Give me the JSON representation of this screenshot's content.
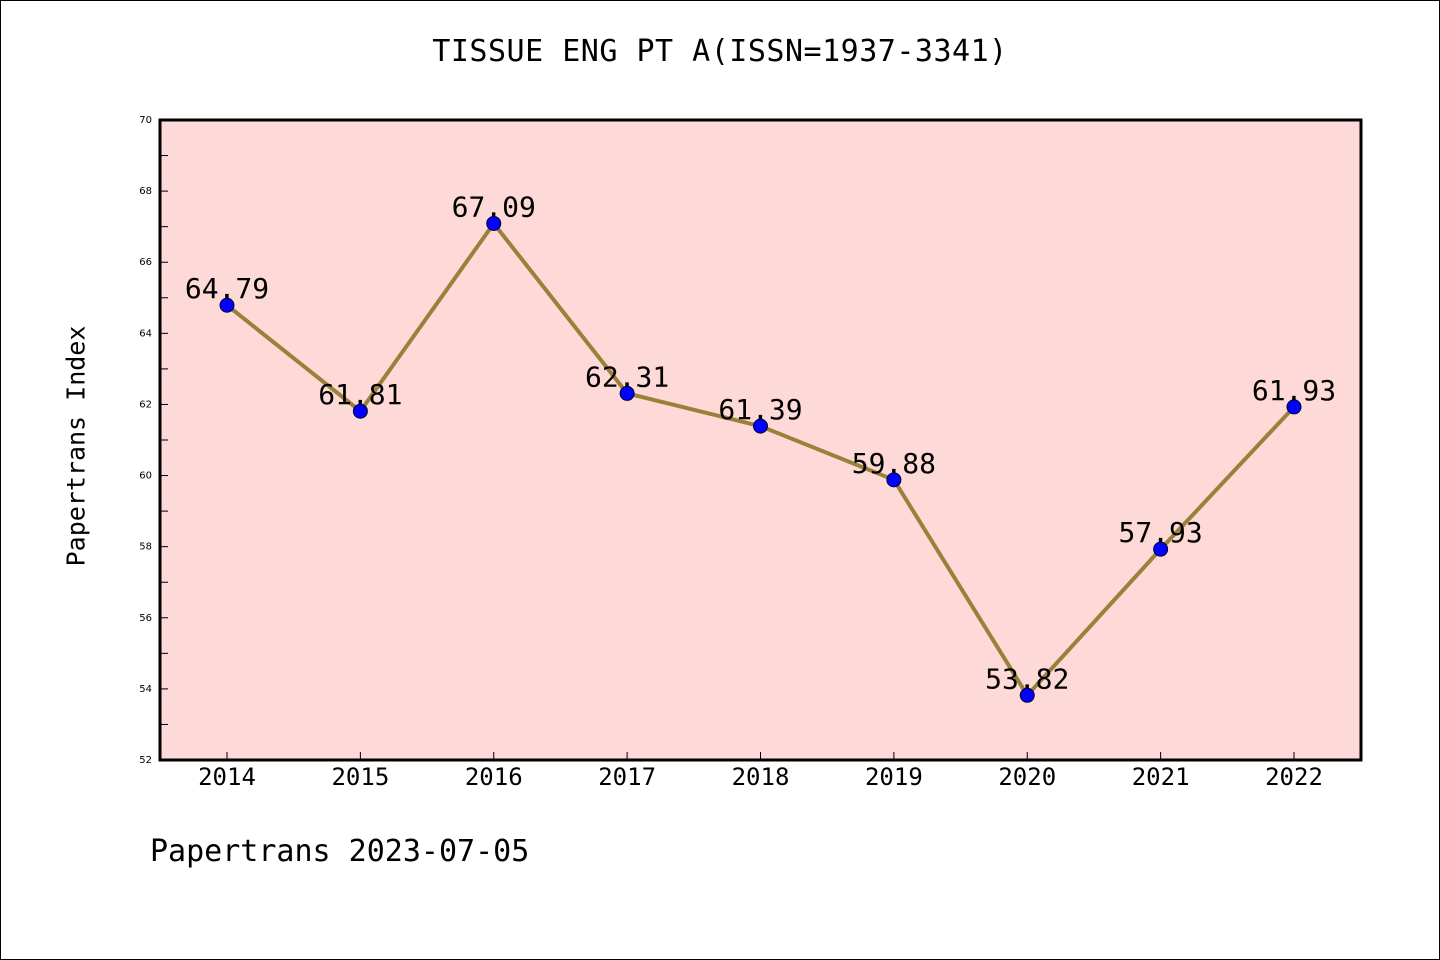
{
  "chart_data": {
    "type": "line",
    "title": "TISSUE ENG PT A(ISSN=1937-3341)",
    "xlabel": "",
    "ylabel": "Papertrans Index",
    "categories": [
      "2014",
      "2015",
      "2016",
      "2017",
      "2018",
      "2019",
      "2020",
      "2021",
      "2022"
    ],
    "series": [
      {
        "values": [
          64.79,
          61.81,
          67.09,
          62.31,
          61.39,
          59.88,
          53.82,
          57.93,
          61.93
        ],
        "labels": [
          "64.79",
          "61.81",
          "67.09",
          "62.31",
          "61.39",
          "59.88",
          "53.82",
          "57.93",
          "61.93"
        ]
      }
    ],
    "ylim": [
      52,
      70
    ],
    "yticks": [
      "52",
      "54",
      "56",
      "58",
      "60",
      "62",
      "64",
      "66",
      "68",
      "70"
    ],
    "grid": false,
    "legend": "none",
    "colors": {
      "plot_background": "#fdd9d7",
      "line": "#9a813a",
      "marker": "#0000ff"
    }
  },
  "footer": {
    "note": "Papertrans 2023-07-05"
  }
}
